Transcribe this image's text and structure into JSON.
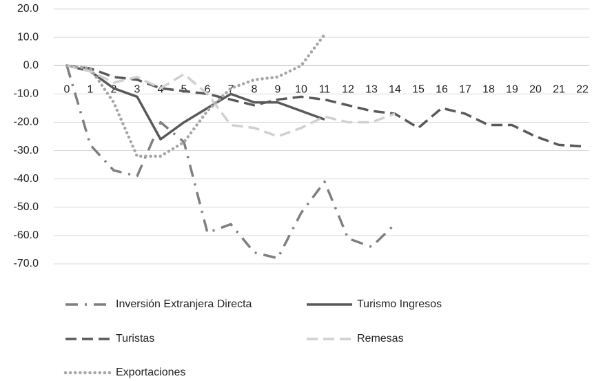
{
  "chart_data": {
    "type": "line",
    "categories": [
      "0",
      "1",
      "2",
      "3",
      "4",
      "5",
      "6",
      "7",
      "8",
      "9",
      "10",
      "11",
      "12",
      "13",
      "14",
      "15",
      "16",
      "17",
      "18",
      "19",
      "20",
      "21",
      "22"
    ],
    "series": [
      {
        "name": "Inversión Extranjera Directa",
        "color": "#7f7f7f",
        "style": "dashdot",
        "values": [
          0,
          -28,
          -37,
          -39,
          -20,
          -27,
          -59,
          -56,
          -66,
          -68,
          -52,
          -41,
          -61,
          -64,
          -56,
          null,
          null,
          null,
          null,
          null,
          null,
          null,
          null
        ]
      },
      {
        "name": "Turismo Ingresos",
        "color": "#595959",
        "style": "solid",
        "values": [
          0,
          -2,
          -8,
          -11,
          -26,
          -20,
          -15,
          -10,
          -13,
          -13,
          -16,
          -19,
          null,
          null,
          null,
          null,
          null,
          null,
          null,
          null,
          null,
          null,
          null
        ]
      },
      {
        "name": "Turistas",
        "color": "#595959",
        "style": "dashed",
        "values": [
          0,
          -1,
          -4,
          -5,
          -8,
          -9,
          -10,
          -12,
          -14,
          -12,
          -11,
          -12,
          -14,
          -16,
          -17,
          -22,
          -15,
          -17,
          -21,
          -21,
          -25,
          -28,
          -28.5
        ]
      },
      {
        "name": "Remesas",
        "color": "#d0d0d0",
        "style": "dashed",
        "values": [
          0,
          -2,
          -6,
          -4,
          -8,
          -3,
          -10,
          -21,
          -22,
          -25,
          -22,
          -18,
          -20,
          -20,
          -17,
          null,
          null,
          null,
          null,
          null,
          null,
          null,
          null
        ]
      },
      {
        "name": "Exportaciones",
        "color": "#a6a6a6",
        "style": "dotted",
        "values": [
          0,
          -1,
          -13,
          -32,
          -32,
          -27,
          -16,
          -8,
          -5,
          -4,
          0,
          11,
          null,
          null,
          null,
          null,
          null,
          null,
          null,
          null,
          null,
          null,
          null
        ]
      }
    ],
    "ylim": [
      -70,
      20
    ],
    "yticks": [
      {
        "value": 20,
        "label": "20.0"
      },
      {
        "value": 10,
        "label": "10.0"
      },
      {
        "value": 0,
        "label": "0.0"
      },
      {
        "value": -10,
        "label": "-10.0"
      },
      {
        "value": -20,
        "label": "-20.0"
      },
      {
        "value": -30,
        "label": "-30.0"
      },
      {
        "value": -40,
        "label": "-40.0"
      },
      {
        "value": -50,
        "label": "-50.0"
      },
      {
        "value": -60,
        "label": "-60.0"
      },
      {
        "value": -70,
        "label": "-70.0"
      }
    ],
    "grid": true,
    "legend": "bottom"
  }
}
